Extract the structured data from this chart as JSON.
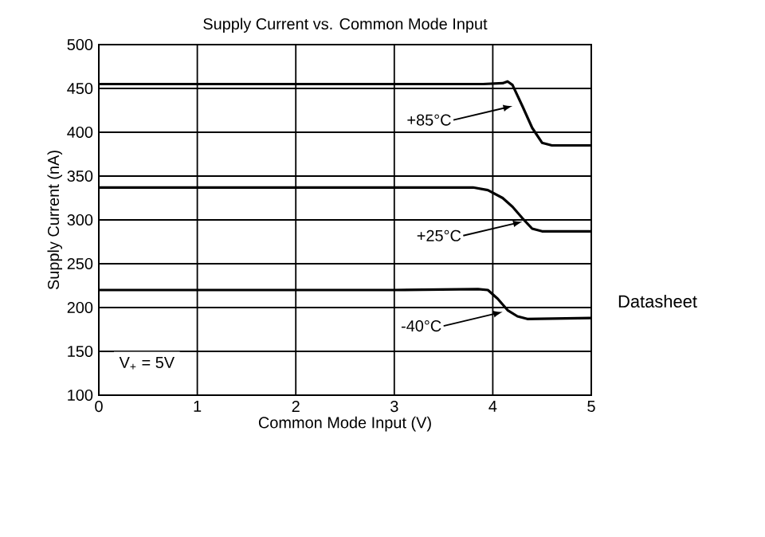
{
  "chart_data": {
    "type": "line",
    "title": "Supply Current vs. Common Mode Input",
    "xlabel": "Common Mode Input (V)",
    "ylabel": "Supply Current (nA)",
    "xlim": [
      0,
      5
    ],
    "ylim": [
      100,
      500
    ],
    "xticks": [
      0,
      1,
      2,
      3,
      4,
      5
    ],
    "yticks": [
      100,
      150,
      200,
      250,
      300,
      350,
      400,
      450,
      500
    ],
    "grid": true,
    "marker": "none",
    "line_style": "solid",
    "series": [
      {
        "color": "#000000",
        "x": [
          0,
          1,
          2,
          3,
          3.9,
          4.1,
          4.15,
          4.2,
          4.3,
          4.4,
          4.5,
          4.6,
          5
        ],
        "values": [
          455,
          455,
          455,
          455,
          455,
          456,
          458,
          454,
          430,
          405,
          388,
          385,
          385
        ]
      },
      {
        "color": "#000000",
        "x": [
          0,
          1,
          2,
          3,
          3.8,
          3.95,
          4.1,
          4.2,
          4.3,
          4.4,
          4.5,
          5
        ],
        "values": [
          337,
          337,
          337,
          337,
          337,
          334,
          325,
          315,
          302,
          290,
          287,
          287
        ]
      },
      {
        "color": "#000000",
        "x": [
          0,
          1,
          2,
          3,
          3.85,
          3.95,
          4.05,
          4.15,
          4.25,
          4.35,
          5
        ],
        "values": [
          220,
          220,
          220,
          220,
          221,
          220,
          210,
          197,
          190,
          187,
          188
        ]
      }
    ],
    "annotations": [
      {
        "text": "+85°C",
        "x": 4.25,
        "y": 432
      },
      {
        "text": "+25°C",
        "x": 4.35,
        "y": 300
      },
      {
        "text": "-40°C",
        "x": 4.15,
        "y": 197
      },
      "V$_{+}$ = 5V",
      "Datasheet"
    ]
  }
}
